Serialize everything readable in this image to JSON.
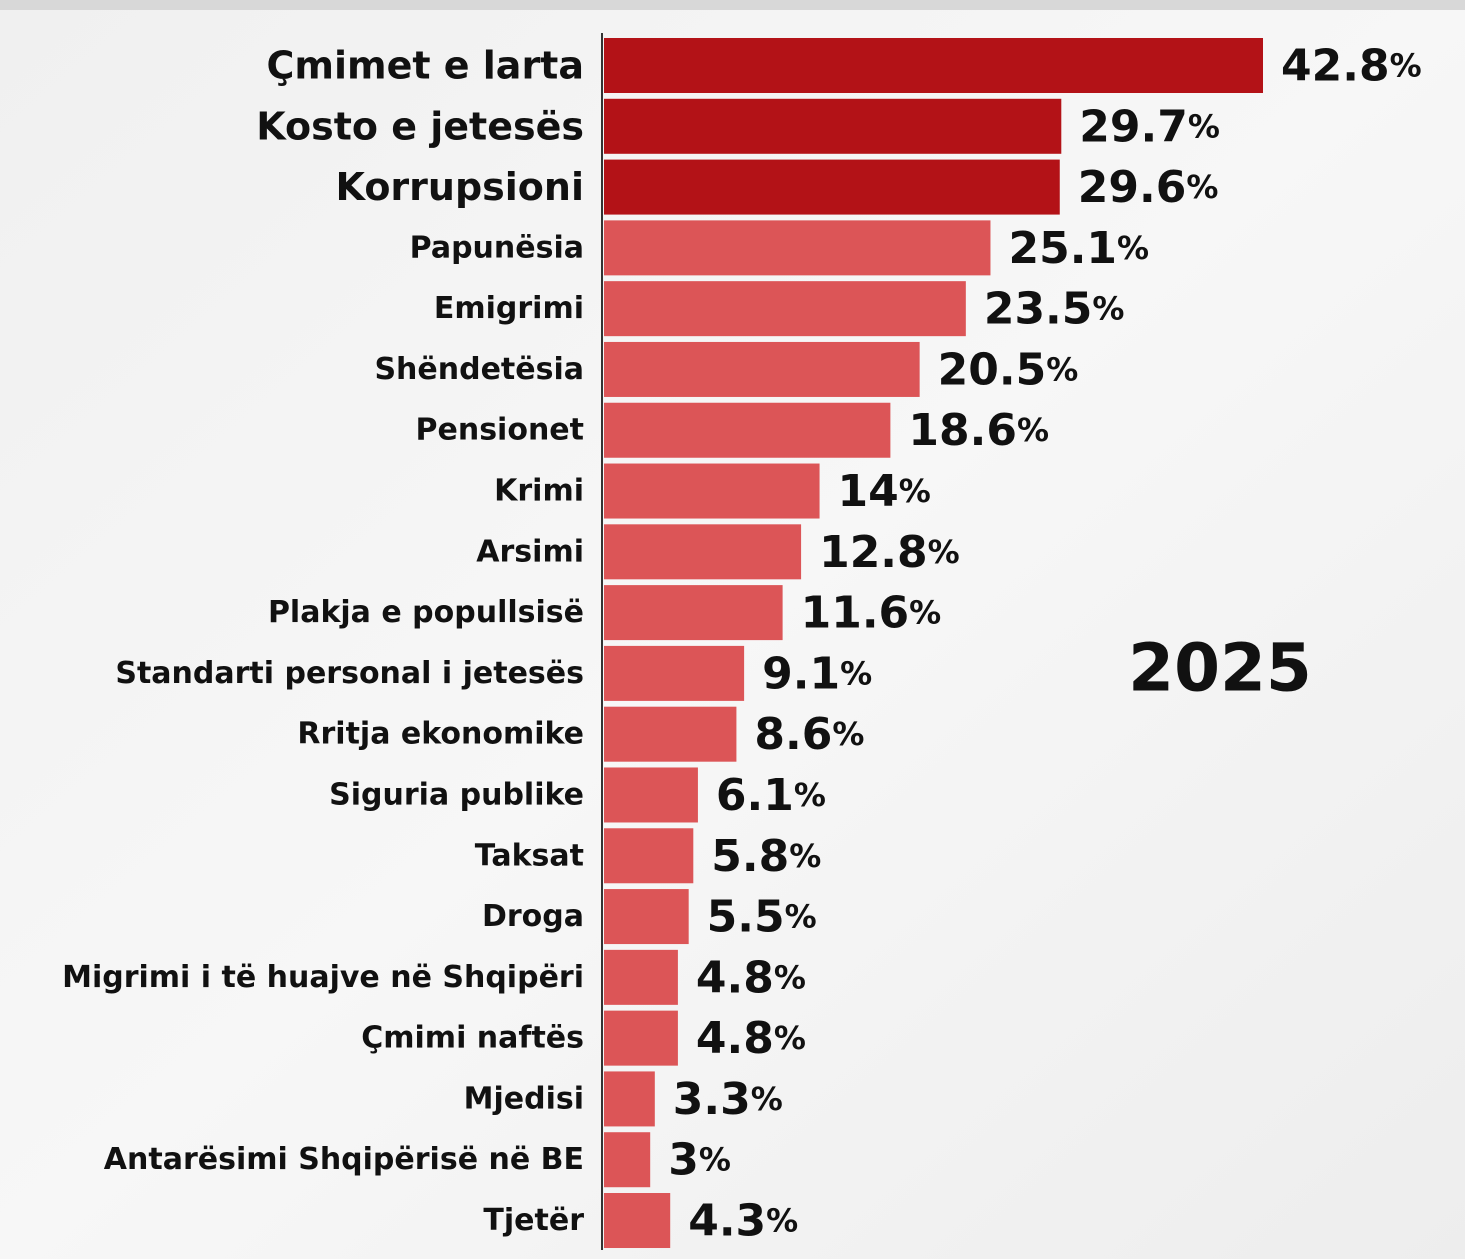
{
  "chart_data": {
    "type": "bar",
    "orientation": "horizontal",
    "categories": [
      "Çmimet e larta",
      "Kosto e jetesës",
      "Korrupsioni",
      "Papunësia",
      "Emigrimi",
      "Shëndetësia",
      "Pensionet",
      "Krimi",
      "Arsimi",
      "Plakja e popullsisë",
      "Standarti personal i jetesës",
      "Rritja ekonomike",
      "Siguria publike",
      "Taksat",
      "Droga",
      "Migrimi i të huajve në Shqipëri",
      "Çmimi naftës",
      "Mjedisi",
      "Antarësimi Shqipërisë në BE",
      "Tjetër"
    ],
    "values": [
      42.8,
      29.7,
      29.6,
      25.1,
      23.5,
      20.5,
      18.6,
      14,
      12.8,
      11.6,
      9.1,
      8.6,
      6.1,
      5.8,
      5.5,
      4.8,
      4.8,
      3.3,
      3,
      4.3
    ],
    "value_labels": [
      "42.8%",
      "29.7%",
      "29.6%",
      "25.1%",
      "23.5%",
      "20.5%",
      "18.6%",
      "14%",
      "12.8%",
      "11.6%",
      "9.1%",
      "8.6%",
      "6.1%",
      "5.8%",
      "5.5%",
      "4.8%",
      "4.8%",
      "3.3%",
      "3%",
      "4.3%"
    ],
    "colors": [
      "#b31217",
      "#b31217",
      "#b31217",
      "#dc5557",
      "#dc5557",
      "#dc5557",
      "#dc5557",
      "#dc5557",
      "#dc5557",
      "#dc5557",
      "#dc5557",
      "#dc5557",
      "#dc5557",
      "#dc5557",
      "#dc5557",
      "#dc5557",
      "#dc5557",
      "#dc5557",
      "#dc5557",
      "#dc5557"
    ],
    "annotation": "2025",
    "annotation_color": "#b31217"
  }
}
